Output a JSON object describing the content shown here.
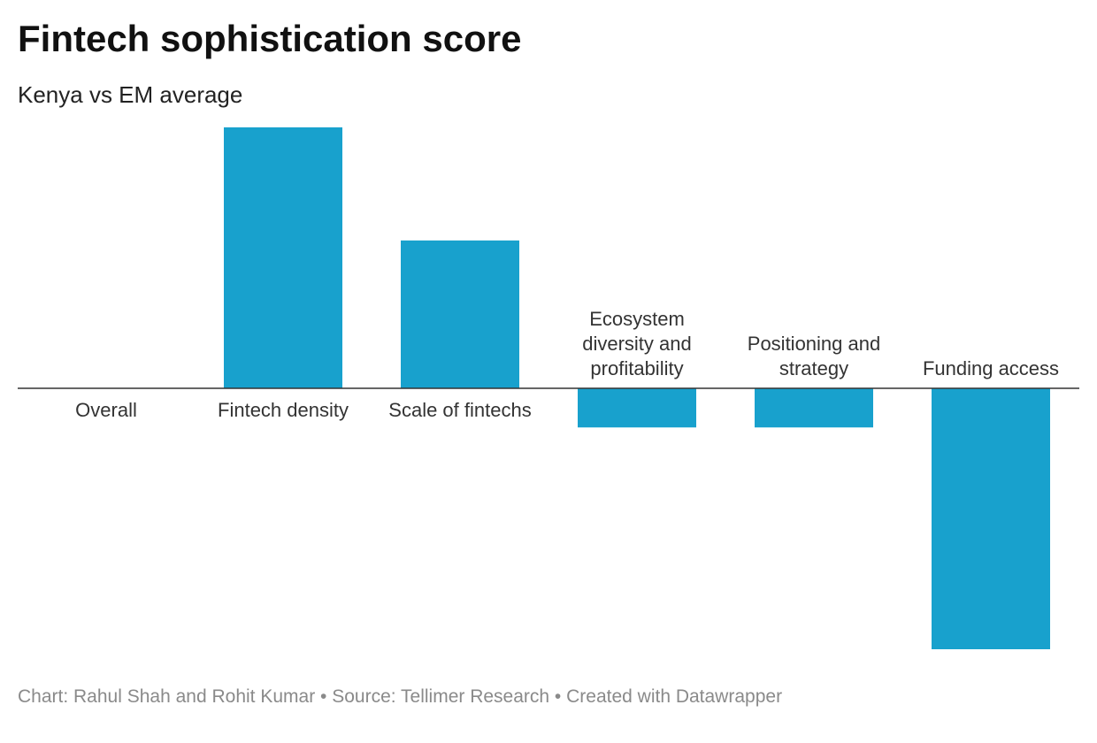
{
  "header": {
    "title": "Fintech sophistication score",
    "subtitle": "Kenya vs EM average"
  },
  "footer": {
    "text": "Chart: Rahul Shah and Rohit Kumar • Source: Tellimer Research • Created with Datawrapper"
  },
  "colors": {
    "bar": "#18a1cd",
    "axis": "#333333"
  },
  "chart_data": {
    "type": "bar",
    "title": "Fintech sophistication score",
    "subtitle": "Kenya vs EM average",
    "categories": [
      "Overall",
      "Fintech density",
      "Scale of fintechs",
      "Ecosystem diversity and profitability",
      "Positioning and strategy",
      "Funding access"
    ],
    "category_label_lines": [
      [
        "Overall"
      ],
      [
        "Fintech density"
      ],
      [
        "Scale of fintechs"
      ],
      [
        "Ecosystem",
        "diversity and",
        "profitability"
      ],
      [
        "Positioning and",
        "strategy"
      ],
      [
        "Funding access"
      ]
    ],
    "values": [
      0,
      3.0,
      1.7,
      -0.45,
      -0.45,
      -3.0
    ],
    "ylim": [
      -3.0,
      3.0
    ],
    "grid": false,
    "legend": "none",
    "xlabel": "",
    "ylabel": ""
  }
}
